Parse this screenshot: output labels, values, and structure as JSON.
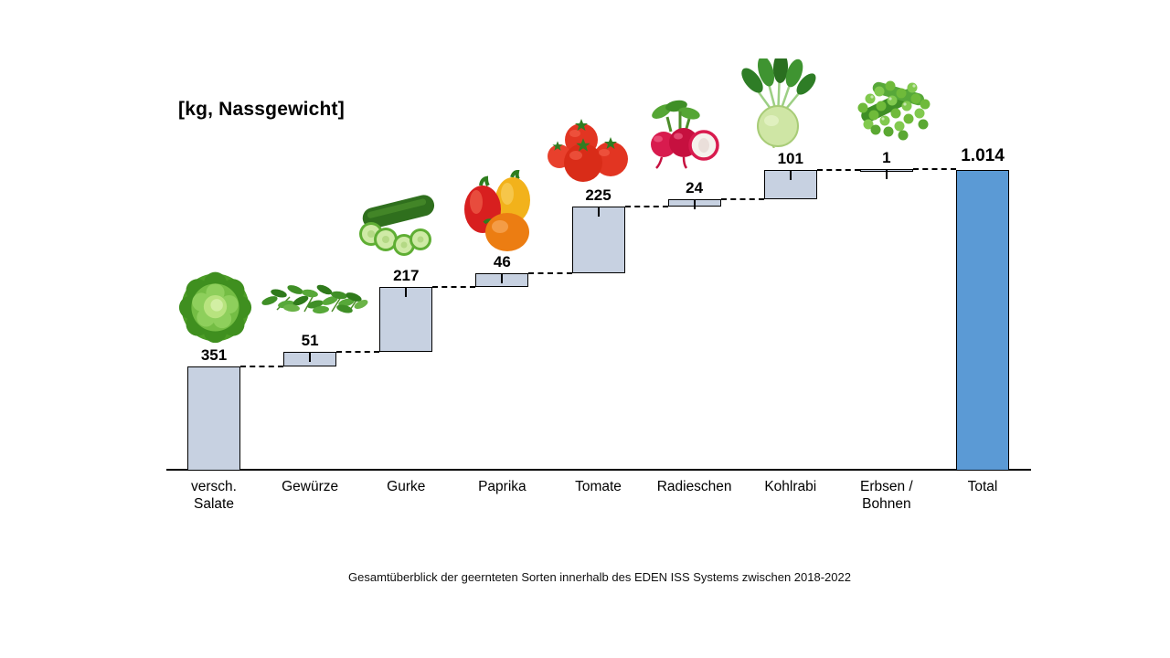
{
  "chart_data": {
    "type": "bar",
    "subtype": "waterfall",
    "title": "[kg, Nassgewicht]",
    "caption": "Gesamtüberblick der geernteten Sorten innerhalb des EDEN ISS Systems zwischen 2018-2022",
    "unit": "kg",
    "ylim": [
      0,
      1014
    ],
    "grid": false,
    "legend": "none",
    "items": [
      {
        "label": "versch.\nSalate",
        "value": 351,
        "display": "351",
        "icon": "lettuce-image",
        "is_total": false,
        "tick": false
      },
      {
        "label": "Gewürze",
        "value": 51,
        "display": "51",
        "icon": "herbs-image",
        "is_total": false,
        "tick": true
      },
      {
        "label": "Gurke",
        "value": 217,
        "display": "217",
        "icon": "cucumber-image",
        "is_total": false,
        "tick": true
      },
      {
        "label": "Paprika",
        "value": 46,
        "display": "46",
        "icon": "bell-peppers-image",
        "is_total": false,
        "tick": true
      },
      {
        "label": "Tomate",
        "value": 225,
        "display": "225",
        "icon": "tomatoes-image",
        "is_total": false,
        "tick": true
      },
      {
        "label": "Radieschen",
        "value": 24,
        "display": "24",
        "icon": "radishes-image",
        "is_total": false,
        "tick": true
      },
      {
        "label": "Kohlrabi",
        "value": 101,
        "display": "101",
        "icon": "kohlrabi-image",
        "is_total": false,
        "tick": true
      },
      {
        "label": "Erbsen /\nBohnen",
        "value": 1,
        "display": "1",
        "icon": "peas-image",
        "is_total": false,
        "tick": true
      },
      {
        "label": "Total",
        "value": 1014,
        "display": "1.014",
        "icon": null,
        "is_total": true,
        "tick": false
      }
    ],
    "colors": {
      "bar_fill": "#c7d1e1",
      "total_fill": "#5b9ad5",
      "bar_border": "#000000",
      "connector": "#000000",
      "axis": "#000000",
      "text": "#000000"
    }
  }
}
